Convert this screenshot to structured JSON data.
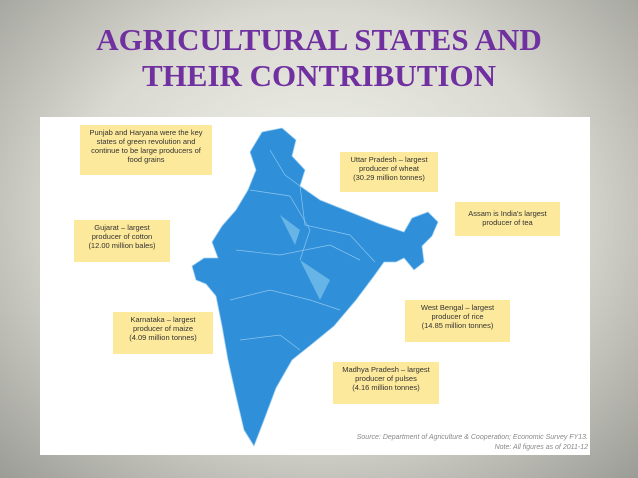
{
  "header": {
    "title": [
      "AGRICULTURAL STATES AND",
      "THEIR CONTRIBUTION"
    ]
  },
  "callouts": [
    {
      "lines": [
        "Punjab and Haryana were the key",
        "states of green revolution and",
        "continue to be large producers of",
        "food grains"
      ]
    },
    {
      "lines": [
        "Uttar Pradesh – largest",
        "producer of wheat",
        "(30.29 million tonnes)"
      ]
    },
    {
      "lines": [
        "Assam is India's largest",
        "producer of tea"
      ]
    },
    {
      "lines": [
        "Gujarat – largest",
        "producer of cotton",
        "(12.00 million bales)"
      ]
    },
    {
      "lines": [
        "Karnataka – largest",
        "producer of maize",
        "(4.09 million tonnes)"
      ]
    },
    {
      "lines": [
        "West Bengal – largest",
        "producer of rice",
        "(14.85 million tonnes)"
      ]
    },
    {
      "lines": [
        "Madhya Pradesh – largest",
        "producer of pulses",
        "(4.16 million tonnes)"
      ]
    }
  ],
  "source": [
    "Source: Department of Agriculture & Cooperation; Economic Survey FY13.",
    "Note: All figures as of 2011-12"
  ]
}
